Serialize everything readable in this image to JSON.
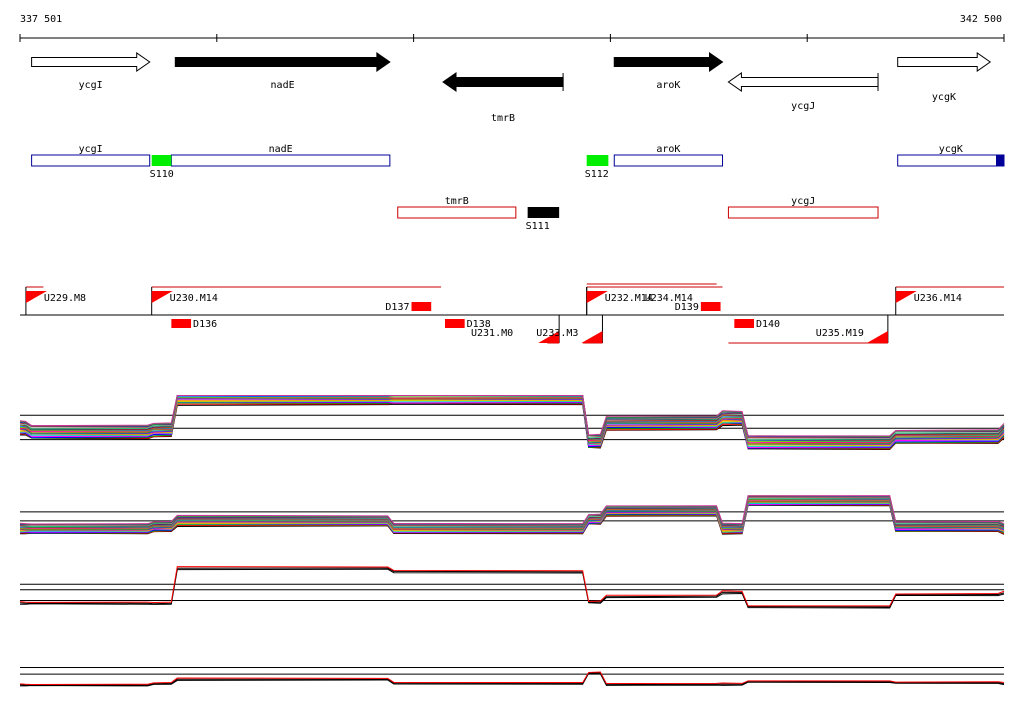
{
  "coordinates": {
    "start": "337 501",
    "end": "342 500",
    "start_bp": 337501,
    "end_bp": 342500
  },
  "genes": [
    {
      "name": "ycgI",
      "start_bp": 337560,
      "end_bp": 338160,
      "strand": "+",
      "fill": "#ffffff",
      "row": "upper"
    },
    {
      "name": "nadE",
      "start_bp": 338290,
      "end_bp": 339380,
      "strand": "+",
      "fill": "#000000",
      "row": "upper"
    },
    {
      "name": "tmrB",
      "start_bp": 339650,
      "end_bp": 340260,
      "strand": "-",
      "fill": "#000000",
      "row": "lower"
    },
    {
      "name": "aroK",
      "start_bp": 340520,
      "end_bp": 341070,
      "strand": "+",
      "fill": "#000000",
      "row": "upper"
    },
    {
      "name": "ycgJ",
      "start_bp": 341100,
      "end_bp": 341860,
      "strand": "-",
      "fill": "#ffffff",
      "row": "lower"
    },
    {
      "name": "ycgK",
      "start_bp": 341960,
      "end_bp": 342430,
      "strand": "+",
      "fill": "#ffffff",
      "row": "upper"
    }
  ],
  "transcripts": [
    {
      "name": "ycgI",
      "start_bp": 337560,
      "end_bp": 338160,
      "strand": "+"
    },
    {
      "name": "nadE",
      "start_bp": 338270,
      "end_bp": 339380,
      "strand": "+"
    },
    {
      "name": "aroK",
      "start_bp": 340520,
      "end_bp": 341070,
      "strand": "+"
    },
    {
      "name": "ycgK",
      "start_bp": 341960,
      "end_bp": 342500,
      "strand": "+",
      "end_block": true
    },
    {
      "name": "tmrB",
      "start_bp": 339420,
      "end_bp": 340020,
      "strand": "-"
    },
    {
      "name": "ycgJ",
      "start_bp": 341100,
      "end_bp": 341860,
      "strand": "-"
    }
  ],
  "segments": [
    {
      "name": "S110",
      "start_bp": 338170,
      "end_bp": 338270,
      "color": "#00ee00",
      "row": "plus"
    },
    {
      "name": "S112",
      "start_bp": 340380,
      "end_bp": 340490,
      "color": "#00ee00",
      "row": "plus"
    },
    {
      "name": "S111",
      "start_bp": 340080,
      "end_bp": 340240,
      "color": "#000000",
      "row": "minus"
    }
  ],
  "tu_up": [
    {
      "name": "U229.M8",
      "start_bp": 337531,
      "end_bp": 337620,
      "text_offset": 10
    },
    {
      "name": "U230.M14",
      "start_bp": 338170,
      "end_bp": 339640,
      "text_offset": 10
    },
    {
      "name": "U232.M14",
      "start_bp": 340380,
      "end_bp": 341070,
      "text_offset": 10
    },
    {
      "name": "U234.M14",
      "start_bp": 340380,
      "end_bp": 341040,
      "text_offset": 50
    },
    {
      "name": "U236.M14",
      "start_bp": 341950,
      "end_bp": 342500,
      "text_offset": 10
    }
  ],
  "tu_down": [
    {
      "name": "U231.M0",
      "start_bp": 340240,
      "end_bp": 340180
    },
    {
      "name": "U233.M3",
      "start_bp": 340460,
      "end_bp": 340360
    },
    {
      "name": "U235.M19",
      "start_bp": 341910,
      "end_bp": 341100
    }
  ],
  "terminators_up": [
    {
      "name": "D137",
      "start_bp": 339490,
      "end_bp": 339590
    },
    {
      "name": "D139",
      "start_bp": 340960,
      "end_bp": 341060
    }
  ],
  "terminators_down": [
    {
      "name": "D136",
      "start_bp": 338270,
      "end_bp": 338370
    },
    {
      "name": "D138",
      "start_bp": 339660,
      "end_bp": 339760
    },
    {
      "name": "D140",
      "start_bp": 341130,
      "end_bp": 341230
    }
  ],
  "chart_data": {
    "type": "line",
    "x_range_bp": [
      337501,
      342500
    ],
    "breakpoints_bp": [
      337501,
      337560,
      338180,
      338300,
      339400,
      340390,
      340480,
      341070,
      341200,
      341950,
      342500
    ],
    "panels": [
      {
        "ref_levels": [
          0.72,
          0.55,
          0.4
        ],
        "profile": [
          0.55,
          0.5,
          0.53,
          0.95,
          0.95,
          0.38,
          0.62,
          0.68,
          0.36,
          0.44,
          0.52
        ],
        "series_count": 22,
        "colors": [
          "#000000",
          "#ff0000",
          "#00aa00",
          "#0000ff",
          "#ff00ff",
          "#00cccc",
          "#cccc00",
          "#ff8800",
          "#8800ff",
          "#008888",
          "#888800",
          "#ff0088",
          "#66cc00",
          "#0066ff",
          "#cc6600",
          "#660066",
          "#00cc66",
          "#aaaaaa",
          "#993333",
          "#3333aa",
          "#339933",
          "#cc3399"
        ]
      },
      {
        "ref_levels": [
          0.68,
          0.52
        ],
        "profile": [
          0.38,
          0.38,
          0.42,
          0.52,
          0.38,
          0.55,
          0.7,
          0.38,
          0.88,
          0.42,
          0.38
        ],
        "series_count": 22,
        "colors": [
          "#000000",
          "#ff0000",
          "#00aa00",
          "#0000ff",
          "#ff00ff",
          "#00cccc",
          "#cccc00",
          "#ff8800",
          "#8800ff",
          "#008888",
          "#888800",
          "#ff0088",
          "#66cc00",
          "#0066ff",
          "#cc6600",
          "#660066",
          "#00cc66",
          "#aaaaaa",
          "#993333",
          "#3333aa",
          "#339933",
          "#cc3399"
        ]
      },
      {
        "ref_levels": [
          0.55,
          0.45,
          0.25
        ],
        "profile": [
          0.2,
          0.2,
          0.2,
          0.85,
          0.78,
          0.22,
          0.33,
          0.4,
          0.13,
          0.36,
          0.4
        ],
        "series_count": 3,
        "colors": [
          "#000000",
          "#000000",
          "#ff0000"
        ]
      },
      {
        "ref_levels": [
          0.68,
          0.52
        ],
        "profile": [
          0.26,
          0.26,
          0.3,
          0.4,
          0.3,
          0.55,
          0.28,
          0.28,
          0.34,
          0.32,
          0.3
        ],
        "series_count": 3,
        "colors": [
          "#000000",
          "#000000",
          "#ff0000"
        ]
      }
    ]
  }
}
